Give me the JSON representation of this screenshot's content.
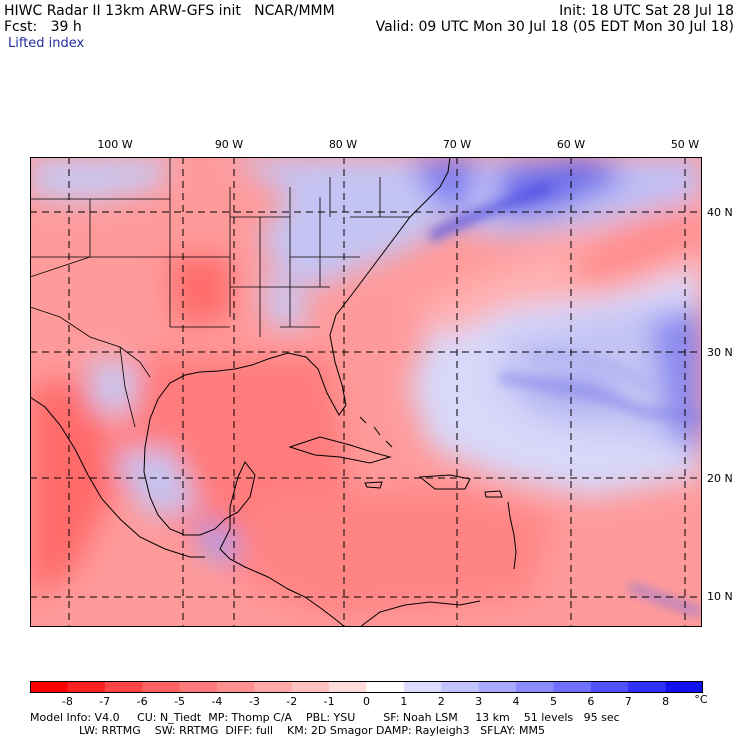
{
  "header": {
    "left_line1": "HIWC Radar II 13km ARW-GFS init   NCAR/MMM",
    "left_line2": "Fcst:   39 h",
    "init": "Init: 18 UTC Sat 28 Jul 18",
    "valid": "Valid: 09 UTC Mon 30 Jul 18 (05 EDT Mon 30 Jul 18)",
    "field": "Lifted index"
  },
  "map": {
    "lon_labels": [
      "100 W",
      "90 W",
      "80 W",
      "70 W",
      "60 W",
      "50 W"
    ],
    "lat_labels": [
      "40 N",
      "30 N",
      "20 N",
      "10 N"
    ]
  },
  "colorbar": {
    "labels": [
      "-8",
      "-7",
      "-6",
      "-5",
      "-4",
      "-3",
      "-2",
      "-1",
      "0",
      "1",
      "2",
      "3",
      "4",
      "5",
      "6",
      "7",
      "8"
    ],
    "unit": "°C",
    "colors": [
      "#ff0000",
      "#ff2020",
      "#ff4545",
      "#ff6262",
      "#ff7a7a",
      "#ff9090",
      "#ffa8a8",
      "#ffc2c2",
      "#ffdcdc",
      "#ffffff",
      "#dcdcff",
      "#c2c2ff",
      "#a8a8ff",
      "#8c8cff",
      "#7070ff",
      "#5050ff",
      "#3030ff",
      "#1010f0"
    ]
  },
  "footer": {
    "line1": "Model Info: V4.0     CU: N_Tiedt  MP: Thomp C/A    PBL: YSU        SF: Noah LSM     13 km    51 levels   95 sec",
    "line2": "              LW: RRTMG    SW: RRTMG  DIFF: full    KM: 2D Smagor DAMP: Rayleigh3   SFLAY: MM5"
  }
}
